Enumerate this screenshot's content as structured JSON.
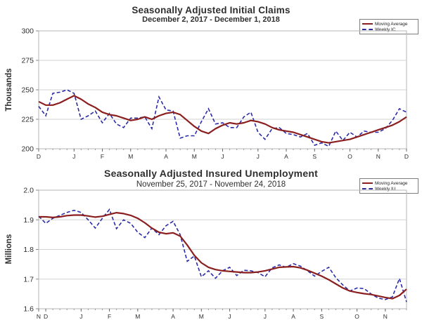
{
  "page": {
    "background": "#ffffff"
  },
  "chart_data": [
    {
      "type": "line",
      "title": "Seasonally Adjusted Initial Claims",
      "subtitle": "December 2, 2017 - December 1, 2018",
      "ylabel": "Thousands",
      "ylim": [
        200,
        300
      ],
      "y_ticks": [
        "300",
        "275",
        "250",
        "225",
        "200"
      ],
      "grid": "horizontal",
      "legend_position": "top-right",
      "x_month_labels": [
        "D",
        "J",
        "F",
        "M",
        "A",
        "M",
        "J",
        "J",
        "A",
        "S",
        "O",
        "N",
        "D"
      ],
      "x_month_week_index": [
        0,
        5,
        9,
        13,
        18,
        22,
        26,
        31,
        35,
        39,
        44,
        48,
        52
      ],
      "series": [
        {
          "name": "Moving Average",
          "color": "#8B1F1F",
          "dashed": false,
          "values": [
            240,
            237,
            237,
            239,
            242,
            245,
            242,
            238,
            235,
            231,
            229,
            228,
            226,
            224,
            225,
            227,
            225,
            228,
            230,
            231,
            229,
            224,
            219,
            215,
            213,
            217,
            220,
            222,
            221,
            222,
            224,
            223,
            221,
            218,
            216,
            215,
            214,
            212,
            210,
            208,
            206,
            205,
            206,
            207,
            208,
            210,
            212,
            214,
            216,
            218,
            220,
            223,
            227
          ]
        },
        {
          "name": "Weekly IC",
          "color": "#2B2BA8",
          "dashed": true,
          "values": [
            236,
            228,
            247,
            248,
            250,
            247,
            225,
            228,
            232,
            222,
            230,
            221,
            218,
            226,
            226,
            227,
            217,
            244,
            233,
            232,
            209,
            211,
            211,
            223,
            234,
            221,
            222,
            218,
            218,
            227,
            231,
            214,
            208,
            217,
            218,
            213,
            212,
            210,
            213,
            203,
            205,
            202,
            215,
            207,
            214,
            210,
            215,
            214,
            214,
            217,
            224,
            234,
            231
          ]
        }
      ]
    },
    {
      "type": "line",
      "title": "Seasonally Adjusted Insured Unemployment",
      "subtitle": "November 25, 2017 - November 24, 2018",
      "ylabel": "Millions",
      "ylim": [
        1.6,
        2.0
      ],
      "y_ticks": [
        "2.0",
        "1.9",
        "1.8",
        "1.7",
        "1.6"
      ],
      "grid": "horizontal",
      "legend_position": "top-right",
      "x_month_labels": [
        "N",
        "D",
        "J",
        "F",
        "M",
        "A",
        "M",
        "J",
        "J",
        "A",
        "S",
        "O",
        "N"
      ],
      "x_month_week_index": [
        0,
        1,
        6,
        10,
        14,
        19,
        23,
        27,
        32,
        36,
        40,
        45,
        49
      ],
      "series": [
        {
          "name": "Moving Average",
          "color": "#8B1F1F",
          "dashed": false,
          "values": [
            1.91,
            1.91,
            1.908,
            1.91,
            1.914,
            1.916,
            1.916,
            1.913,
            1.909,
            1.912,
            1.918,
            1.924,
            1.921,
            1.915,
            1.905,
            1.89,
            1.872,
            1.858,
            1.853,
            1.856,
            1.845,
            1.815,
            1.78,
            1.755,
            1.74,
            1.732,
            1.728,
            1.726,
            1.724,
            1.722,
            1.722,
            1.724,
            1.728,
            1.734,
            1.74,
            1.741,
            1.742,
            1.738,
            1.73,
            1.72,
            1.71,
            1.698,
            1.684,
            1.67,
            1.66,
            1.655,
            1.651,
            1.648,
            1.643,
            1.638,
            1.634,
            1.645,
            1.666
          ]
        },
        {
          "name": "Weekly IU",
          "color": "#2B2BA8",
          "dashed": true,
          "values": [
            1.912,
            1.888,
            1.905,
            1.915,
            1.925,
            1.932,
            1.925,
            1.9,
            1.872,
            1.905,
            1.935,
            1.87,
            1.9,
            1.888,
            1.858,
            1.84,
            1.872,
            1.85,
            1.88,
            1.895,
            1.85,
            1.76,
            1.778,
            1.708,
            1.728,
            1.703,
            1.728,
            1.74,
            1.712,
            1.73,
            1.728,
            1.722,
            1.708,
            1.738,
            1.748,
            1.74,
            1.752,
            1.744,
            1.728,
            1.71,
            1.726,
            1.74,
            1.705,
            1.68,
            1.66,
            1.67,
            1.668,
            1.65,
            1.636,
            1.631,
            1.64,
            1.702,
            1.623
          ]
        }
      ]
    }
  ]
}
